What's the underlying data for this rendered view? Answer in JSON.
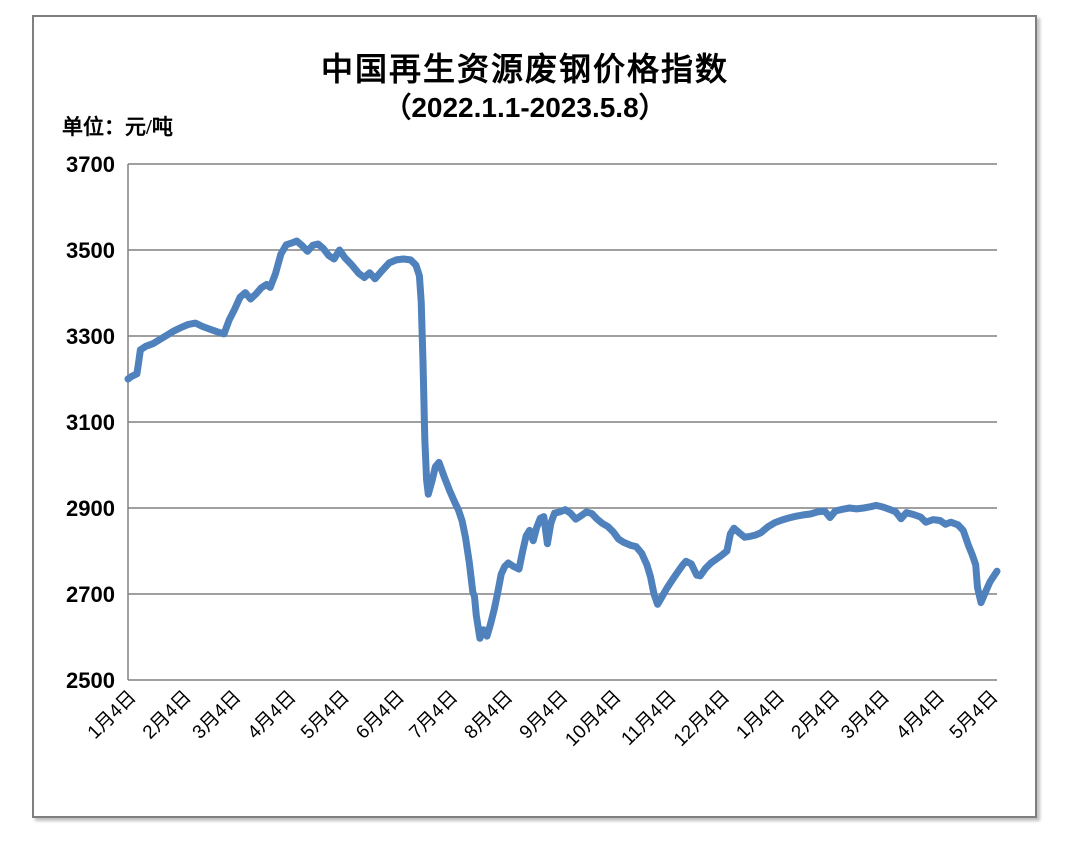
{
  "title": "中国再生资源废钢价格指数",
  "subtitle": "（2022.1.1-2023.5.8）",
  "unit_label": "单位：元/吨",
  "colors": {
    "line": "#4F81BD",
    "grid": "#808080",
    "frame_border": "#7f7f7f",
    "text": "#000000",
    "background": "#ffffff"
  },
  "chart_data": {
    "type": "line",
    "title": "中国再生资源废钢价格指数",
    "subtitle": "（2022.1.1-2023.5.8）",
    "ylabel": "单位：元/吨",
    "xlabel": "",
    "ylim": [
      2500,
      3700
    ],
    "y_ticks": [
      3700,
      3500,
      3300,
      3100,
      2900,
      2700,
      2500
    ],
    "grid": "horizontal",
    "legend": "none",
    "x_domain_days": [
      0,
      489
    ],
    "x_tick_days": [
      0,
      31,
      59,
      90,
      120,
      151,
      181,
      212,
      243,
      273,
      304,
      334,
      365,
      396,
      424,
      455,
      485
    ],
    "x_tick_labels": [
      "1月4日",
      "2月4日",
      "3月4日",
      "4月4日",
      "5月4日",
      "6月4日",
      "7月4日",
      "8月4日",
      "9月4日",
      "10月4日",
      "11月4日",
      "12月4日",
      "1月4日",
      "2月4日",
      "3月4日",
      "4月4日",
      "5月4日"
    ],
    "series": [
      {
        "name": "废钢价格指数",
        "color": "#4F81BD",
        "points": [
          [
            0,
            3200
          ],
          [
            2,
            3206
          ],
          [
            5,
            3212
          ],
          [
            6,
            3240
          ],
          [
            7,
            3268
          ],
          [
            10,
            3276
          ],
          [
            14,
            3282
          ],
          [
            18,
            3292
          ],
          [
            22,
            3302
          ],
          [
            26,
            3312
          ],
          [
            30,
            3320
          ],
          [
            34,
            3327
          ],
          [
            38,
            3330
          ],
          [
            42,
            3322
          ],
          [
            46,
            3316
          ],
          [
            50,
            3310
          ],
          [
            54,
            3305
          ],
          [
            57,
            3338
          ],
          [
            60,
            3362
          ],
          [
            63,
            3390
          ],
          [
            66,
            3401
          ],
          [
            69,
            3386
          ],
          [
            72,
            3398
          ],
          [
            75,
            3412
          ],
          [
            78,
            3420
          ],
          [
            80,
            3413
          ],
          [
            83,
            3445
          ],
          [
            86,
            3490
          ],
          [
            89,
            3512
          ],
          [
            92,
            3516
          ],
          [
            95,
            3521
          ],
          [
            98,
            3510
          ],
          [
            101,
            3497
          ],
          [
            104,
            3511
          ],
          [
            107,
            3514
          ],
          [
            110,
            3503
          ],
          [
            113,
            3487
          ],
          [
            116,
            3479
          ],
          [
            119,
            3500
          ],
          [
            122,
            3482
          ],
          [
            126,
            3465
          ],
          [
            130,
            3445
          ],
          [
            133,
            3436
          ],
          [
            136,
            3447
          ],
          [
            139,
            3433
          ],
          [
            143,
            3452
          ],
          [
            147,
            3470
          ],
          [
            151,
            3477
          ],
          [
            155,
            3479
          ],
          [
            159,
            3477
          ],
          [
            162,
            3465
          ],
          [
            164,
            3440
          ],
          [
            165,
            3380
          ],
          [
            166,
            3240
          ],
          [
            167,
            3060
          ],
          [
            168,
            2965
          ],
          [
            169,
            2932
          ],
          [
            171,
            2962
          ],
          [
            173,
            2996
          ],
          [
            175,
            3006
          ],
          [
            178,
            2972
          ],
          [
            181,
            2940
          ],
          [
            184,
            2912
          ],
          [
            186,
            2895
          ],
          [
            188,
            2870
          ],
          [
            190,
            2830
          ],
          [
            192,
            2775
          ],
          [
            194,
            2705
          ],
          [
            195,
            2694
          ],
          [
            196,
            2650
          ],
          [
            198,
            2597
          ],
          [
            200,
            2617
          ],
          [
            202,
            2602
          ],
          [
            204,
            2630
          ],
          [
            206,
            2663
          ],
          [
            208,
            2702
          ],
          [
            210,
            2746
          ],
          [
            212,
            2764
          ],
          [
            214,
            2772
          ],
          [
            217,
            2764
          ],
          [
            220,
            2758
          ],
          [
            222,
            2798
          ],
          [
            224,
            2835
          ],
          [
            226,
            2848
          ],
          [
            228,
            2824
          ],
          [
            230,
            2855
          ],
          [
            232,
            2876
          ],
          [
            234,
            2880
          ],
          [
            236,
            2817
          ],
          [
            238,
            2865
          ],
          [
            240,
            2888
          ],
          [
            243,
            2891
          ],
          [
            246,
            2896
          ],
          [
            249,
            2888
          ],
          [
            252,
            2874
          ],
          [
            255,
            2882
          ],
          [
            258,
            2891
          ],
          [
            261,
            2887
          ],
          [
            264,
            2874
          ],
          [
            267,
            2864
          ],
          [
            270,
            2857
          ],
          [
            273,
            2845
          ],
          [
            276,
            2828
          ],
          [
            279,
            2820
          ],
          [
            283,
            2813
          ],
          [
            286,
            2810
          ],
          [
            289,
            2795
          ],
          [
            292,
            2768
          ],
          [
            294,
            2740
          ],
          [
            296,
            2700
          ],
          [
            298,
            2676
          ],
          [
            300,
            2690
          ],
          [
            303,
            2712
          ],
          [
            306,
            2731
          ],
          [
            309,
            2749
          ],
          [
            312,
            2767
          ],
          [
            314,
            2776
          ],
          [
            317,
            2770
          ],
          [
            320,
            2744
          ],
          [
            322,
            2742
          ],
          [
            325,
            2760
          ],
          [
            328,
            2772
          ],
          [
            331,
            2781
          ],
          [
            334,
            2790
          ],
          [
            337,
            2800
          ],
          [
            339,
            2840
          ],
          [
            341,
            2853
          ],
          [
            344,
            2842
          ],
          [
            347,
            2832
          ],
          [
            350,
            2834
          ],
          [
            353,
            2837
          ],
          [
            356,
            2842
          ],
          [
            360,
            2856
          ],
          [
            364,
            2866
          ],
          [
            368,
            2872
          ],
          [
            372,
            2877
          ],
          [
            376,
            2881
          ],
          [
            380,
            2884
          ],
          [
            384,
            2886
          ],
          [
            388,
            2891
          ],
          [
            392,
            2893
          ],
          [
            395,
            2878
          ],
          [
            398,
            2893
          ],
          [
            402,
            2897
          ],
          [
            406,
            2900
          ],
          [
            410,
            2898
          ],
          [
            414,
            2900
          ],
          [
            418,
            2903
          ],
          [
            421,
            2906
          ],
          [
            425,
            2902
          ],
          [
            429,
            2896
          ],
          [
            432,
            2891
          ],
          [
            435,
            2875
          ],
          [
            438,
            2889
          ],
          [
            442,
            2885
          ],
          [
            446,
            2879
          ],
          [
            449,
            2867
          ],
          [
            453,
            2873
          ],
          [
            457,
            2871
          ],
          [
            460,
            2862
          ],
          [
            463,
            2867
          ],
          [
            467,
            2861
          ],
          [
            470,
            2848
          ],
          [
            473,
            2812
          ],
          [
            475,
            2792
          ],
          [
            477,
            2768
          ],
          [
            478,
            2715
          ],
          [
            480,
            2680
          ],
          [
            482,
            2700
          ],
          [
            485,
            2728
          ],
          [
            489,
            2753
          ]
        ]
      }
    ]
  }
}
